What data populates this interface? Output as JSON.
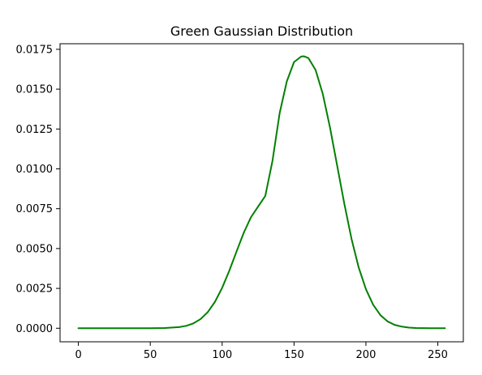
{
  "chart_data": {
    "type": "line",
    "title": "Green Gaussian Distribution",
    "xlabel": "",
    "ylabel": "",
    "xlim": [
      -12.75,
      267.75
    ],
    "ylim": [
      -0.00085,
      0.01785
    ],
    "x_ticks": [
      0,
      50,
      100,
      150,
      200,
      250
    ],
    "x_tick_labels": [
      "0",
      "50",
      "100",
      "150",
      "200",
      "250"
    ],
    "y_ticks": [
      0.0,
      0.0025,
      0.005,
      0.0075,
      0.01,
      0.0125,
      0.015,
      0.0175
    ],
    "y_tick_labels": [
      "0.0000",
      "0.0025",
      "0.0050",
      "0.0075",
      "0.0100",
      "0.0125",
      "0.0150",
      "0.0175"
    ],
    "grid": false,
    "series": [
      {
        "color": "#008000",
        "x": [
          0,
          10,
          20,
          30,
          40,
          50,
          60,
          70,
          75,
          80,
          85,
          90,
          95,
          100,
          105,
          110,
          115,
          120,
          125,
          130,
          135,
          140,
          145,
          150,
          155,
          157,
          160,
          165,
          170,
          175,
          180,
          185,
          190,
          195,
          200,
          205,
          210,
          215,
          220,
          225,
          230,
          235,
          240,
          245,
          250,
          255
        ],
        "y": [
          0.0,
          0.0,
          0.0,
          0.0,
          0.0,
          1e-06,
          1.1e-05,
          6.9e-05,
          0.000151,
          0.000305,
          0.000576,
          0.001012,
          0.001659,
          0.002534,
          0.003614,
          0.004812,
          0.005985,
          0.00696,
          0.00763,
          0.0083,
          0.0105,
          0.0135,
          0.0155,
          0.0167,
          0.01705,
          0.01706,
          0.01695,
          0.0162,
          0.0147,
          0.0126,
          0.0102,
          0.0078,
          0.0056,
          0.0038,
          0.00245,
          0.00148,
          0.00083,
          0.00043,
          0.00021,
          0.0001,
          4e-05,
          1.5e-05,
          5e-06,
          2e-06,
          5e-07,
          1e-07
        ]
      }
    ]
  }
}
